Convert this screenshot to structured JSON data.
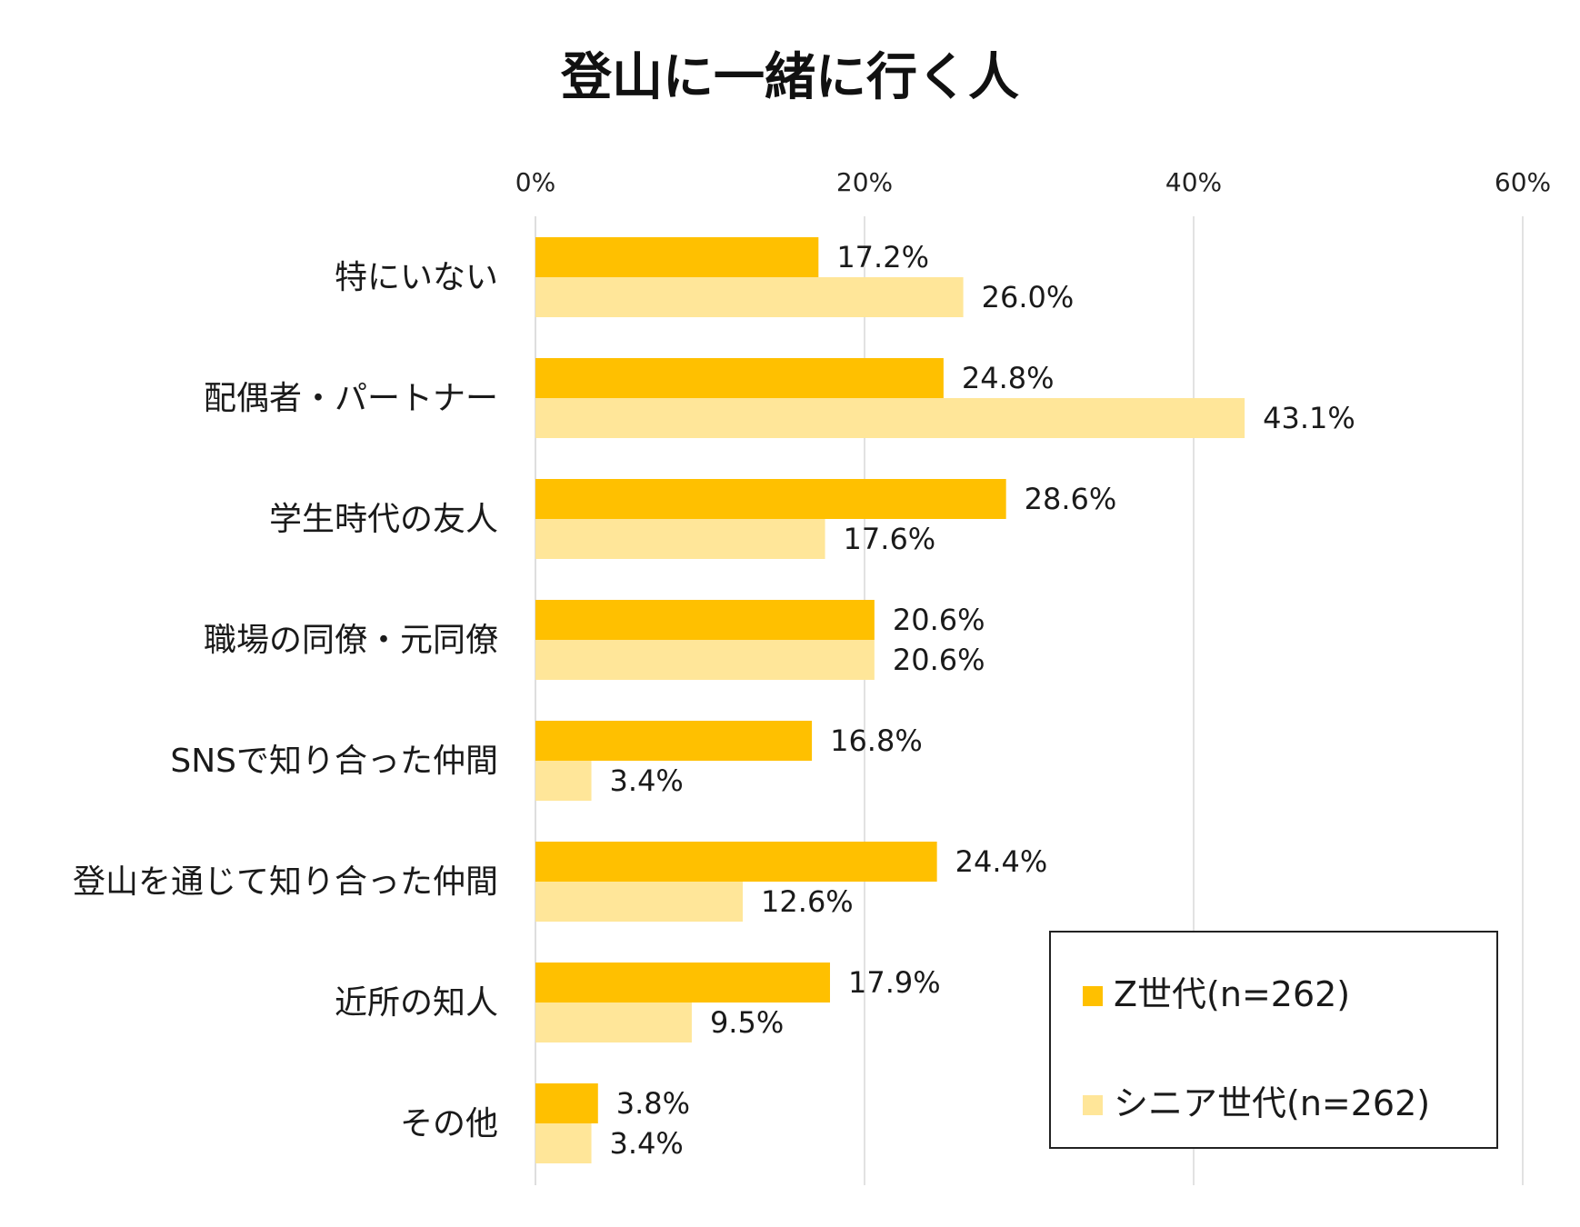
{
  "chart_data": {
    "type": "bar",
    "orientation": "horizontal",
    "title": "登山に一緒に行く人",
    "categories": [
      "特にいない",
      "配偶者・パートナー",
      "学生時代の友人",
      "職場の同僚・元同僚",
      "SNSで知り合った仲間",
      "登山を通じて知り合った仲間",
      "近所の知人",
      "その他"
    ],
    "series": [
      {
        "name": "Z世代(n=262)",
        "color": "#FFC000",
        "values": [
          17.2,
          24.8,
          28.6,
          20.6,
          16.8,
          24.4,
          17.9,
          3.8
        ],
        "labels": [
          "17.2%",
          "24.8%",
          "28.6%",
          "20.6%",
          "16.8%",
          "24.4%",
          "17.9%",
          "3.8%"
        ]
      },
      {
        "name": "シニア世代(n=262)",
        "color": "#FFE699",
        "values": [
          26.0,
          43.1,
          17.6,
          20.6,
          3.4,
          12.6,
          9.5,
          3.4
        ],
        "labels": [
          "26.0%",
          "43.1%",
          "17.6%",
          "20.6%",
          "3.4%",
          "12.6%",
          "9.5%",
          "3.4%"
        ]
      }
    ],
    "xlim": [
      0,
      60
    ],
    "xticks": [
      0,
      20,
      40,
      60
    ],
    "xtick_labels": [
      "0%",
      "20%",
      "40%",
      "60%"
    ],
    "axis_position": "top",
    "grid": true,
    "gridline_color": "#D9D9D9",
    "legend_position": "bottom-right",
    "xlabel": "",
    "ylabel": ""
  }
}
